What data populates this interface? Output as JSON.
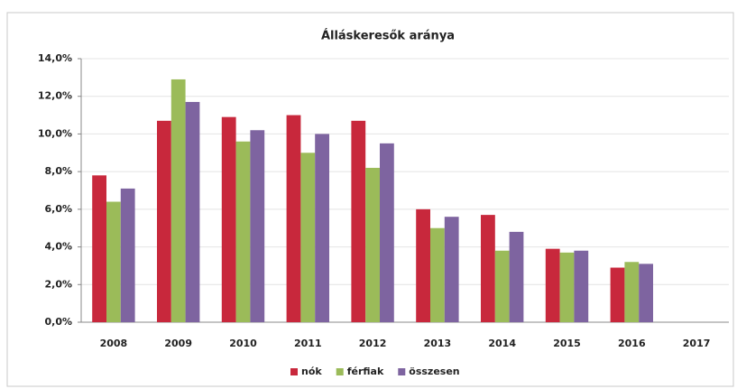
{
  "chart_data": {
    "type": "bar",
    "title": "Álláskeresők aránya",
    "categories": [
      "2008",
      "2009",
      "2010",
      "2011",
      "2012",
      "2013",
      "2014",
      "2015",
      "2016",
      "2017"
    ],
    "series": [
      {
        "name": "nók",
        "color": "#c8283c",
        "values": [
          7.8,
          10.7,
          10.9,
          11.0,
          10.7,
          6.0,
          5.7,
          3.9,
          2.9,
          null
        ]
      },
      {
        "name": "férfiak",
        "color": "#9bbb59",
        "values": [
          6.4,
          12.9,
          9.6,
          9.0,
          8.2,
          5.0,
          3.8,
          3.7,
          3.2,
          null
        ]
      },
      {
        "name": "összesen",
        "color": "#7e64a0",
        "values": [
          7.1,
          11.7,
          10.2,
          10.0,
          9.5,
          5.6,
          4.8,
          3.8,
          3.1,
          null
        ]
      }
    ],
    "ylim": [
      0,
      14
    ],
    "yticks": [
      {
        "value": 0,
        "label": "0,0%"
      },
      {
        "value": 2,
        "label": "2,0%"
      },
      {
        "value": 4,
        "label": "4,0%"
      },
      {
        "value": 6,
        "label": "6,0%"
      },
      {
        "value": 8,
        "label": "8,0%"
      },
      {
        "value": 10,
        "label": "10,0%"
      },
      {
        "value": 12,
        "label": "12,0%"
      },
      {
        "value": 14,
        "label": "14,0%"
      }
    ],
    "grid": true
  }
}
